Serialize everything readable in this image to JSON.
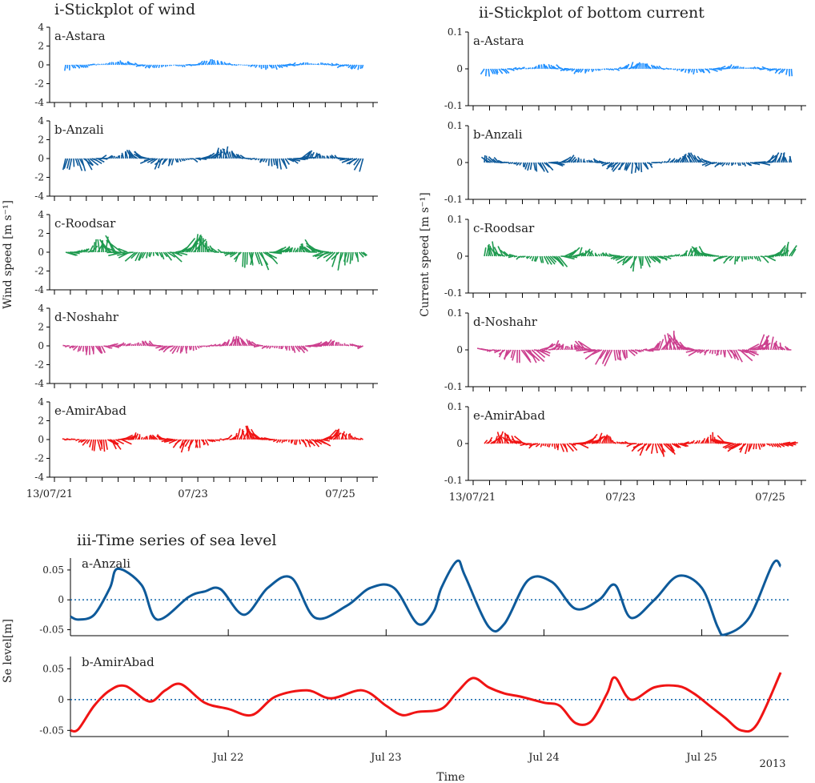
{
  "colors": {
    "astara": "#1f8fff",
    "anzali": "#0e5a9a",
    "roodsar": "#1e9a4f",
    "noshahr": "#cc3f8e",
    "amirabad": "#f01414",
    "zero_line": "#1f6fb0"
  },
  "wind": {
    "title": "i-Stickplot of wind",
    "ylabel": "Wind speed [m s⁻¹]",
    "yticks": [
      "4",
      "2",
      "0",
      "-2",
      "-4"
    ],
    "ylim": [
      -4,
      4
    ],
    "xticks": [
      "13/07/21",
      "07/23",
      "07/25"
    ],
    "stations": [
      {
        "label": "a-Astara",
        "color": "#1f8fff",
        "seed": 11,
        "amp": 0.55
      },
      {
        "label": "b-Anzali",
        "color": "#0e5a9a",
        "seed": 23,
        "amp": 1.25
      },
      {
        "label": "c-Roodsar",
        "color": "#1e9a4f",
        "seed": 37,
        "amp": 1.9
      },
      {
        "label": "d-Noshahr",
        "color": "#cc3f8e",
        "seed": 41,
        "amp": 0.95
      },
      {
        "label": "e-AmirAbad",
        "color": "#f01414",
        "seed": 53,
        "amp": 1.3
      }
    ]
  },
  "current": {
    "title": "ii-Stickplot of bottom current",
    "ylabel": "Current speed [m s⁻¹]",
    "yticks": [
      "0.1",
      "0",
      "-0.1"
    ],
    "ylim": [
      -0.1,
      0.1
    ],
    "xticks": [
      "13/07/21",
      "07/23",
      "07/25"
    ],
    "stations": [
      {
        "label": "a-Astara",
        "color": "#1f8fff",
        "seed": 61,
        "amp": 0.018
      },
      {
        "label": "b-Anzali",
        "color": "#0e5a9a",
        "seed": 71,
        "amp": 0.03
      },
      {
        "label": "c-Roodsar",
        "color": "#1e9a4f",
        "seed": 83,
        "amp": 0.035
      },
      {
        "label": "d-Noshahr",
        "color": "#cc3f8e",
        "seed": 97,
        "amp": 0.045
      },
      {
        "label": "e-AmirAbad",
        "color": "#f01414",
        "seed": 101,
        "amp": 0.035
      }
    ]
  },
  "sea_level": {
    "title": "iii-Time series of sea level",
    "ylabel": "Se level[m]",
    "xlabel": "Time",
    "year_label": "2013",
    "yticks": [
      "0.05",
      "0",
      "-0.05"
    ],
    "ylim": [
      -0.06,
      0.07
    ],
    "xticks": [
      "Jul 22",
      "Jul 23",
      "Jul 24",
      "Jul 25"
    ]
  },
  "chart_data": [
    {
      "type": "line",
      "title": "a-Anzali",
      "xlabel": "Time",
      "ylabel": "Se level[m]",
      "color": "#0e5a9a",
      "ylim": [
        -0.06,
        0.07
      ],
      "x": [
        21.0,
        21.05,
        21.15,
        21.25,
        21.3,
        21.45,
        21.55,
        21.75,
        21.85,
        21.95,
        22.1,
        22.25,
        22.4,
        22.55,
        22.75,
        22.9,
        23.05,
        23.2,
        23.3,
        23.35,
        23.45,
        23.5,
        23.65,
        23.75,
        23.9,
        24.05,
        24.2,
        24.35,
        24.45,
        24.55,
        24.7,
        24.85,
        25.0,
        25.1,
        25.15,
        25.3,
        25.45,
        25.5
      ],
      "values": [
        -0.028,
        -0.033,
        -0.025,
        0.02,
        0.052,
        0.025,
        -0.033,
        0.005,
        0.014,
        0.018,
        -0.025,
        0.02,
        0.037,
        -0.03,
        -0.01,
        0.02,
        0.02,
        -0.04,
        -0.02,
        0.02,
        0.065,
        0.04,
        -0.045,
        -0.04,
        0.033,
        0.03,
        -0.015,
        0.0,
        0.025,
        -0.03,
        0.0,
        0.04,
        0.02,
        -0.045,
        -0.058,
        -0.03,
        0.06,
        0.056
      ]
    },
    {
      "type": "line",
      "title": "b-AmirAbad",
      "xlabel": "Time",
      "ylabel": "Se level[m]",
      "color": "#f01414",
      "ylim": [
        -0.06,
        0.07
      ],
      "x": [
        21.0,
        21.05,
        21.15,
        21.25,
        21.35,
        21.5,
        21.6,
        21.7,
        21.85,
        22.0,
        22.15,
        22.3,
        22.5,
        22.65,
        22.85,
        23.0,
        23.1,
        23.2,
        23.35,
        23.45,
        23.55,
        23.65,
        23.75,
        23.85,
        24.0,
        24.1,
        24.2,
        24.3,
        24.4,
        24.45,
        24.55,
        24.7,
        24.85,
        24.95,
        25.05,
        25.15,
        25.25,
        25.35,
        25.5
      ],
      "values": [
        -0.05,
        -0.048,
        -0.01,
        0.015,
        0.022,
        -0.003,
        0.015,
        0.025,
        -0.005,
        -0.015,
        -0.025,
        0.005,
        0.015,
        0.002,
        0.015,
        -0.01,
        -0.025,
        -0.02,
        -0.015,
        0.012,
        0.035,
        0.02,
        0.01,
        0.005,
        -0.005,
        -0.01,
        -0.038,
        -0.035,
        0.01,
        0.036,
        0.0,
        0.02,
        0.022,
        0.01,
        -0.01,
        -0.03,
        -0.05,
        -0.04,
        0.044
      ]
    }
  ]
}
